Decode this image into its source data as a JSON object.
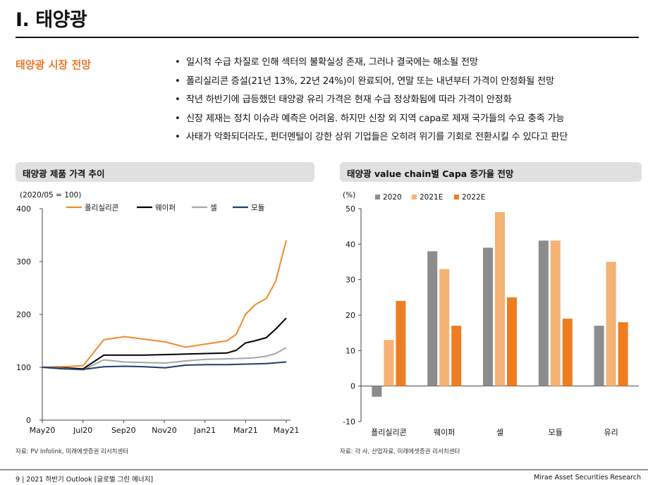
{
  "title": "I. 태양광",
  "section_label": "태양광 시장 전망",
  "bullets": [
    "일시적 수급 차질로 인해 섹터의 불확실성 존재, 그러나 결국에는 해소될 전망",
    "폴리실리콘 증설(21년 13%, 22년 24%)이 완료되어, 연말 또는 내년부터 가격이 안정화될 전망",
    "작년 하반기에 급등했던 태양광 유리 가격은 현재 수급 정상화됨에 따라 가격이 안정화",
    "신장 제재는 정치 이슈라 예측은 어려움. 하지만 신장 외 지역 capa로 제재 국가들의 수요 충족 가능",
    "사태가 악화되더라도, 펀더멘털이 강한 상위 기업들은 오히려 위기를 기회로 전환시킬 수 있다고 판단"
  ],
  "left_panel": {
    "title": "태양광 제품 가격 추이",
    "source": "자료: PV Infolink, 미래에셋증권 리서치센터"
  },
  "right_panel": {
    "title": "태양광 value chain별 Capa 증가율 전망",
    "source": "자료: 각 사, 산업자료, 미래에셋증권 리서치센터"
  },
  "footer": {
    "left": "9 | 2021 하반기 Outlook [글로벌 그린 에너지]",
    "right": "Mirae Asset Securities Research"
  },
  "chart_data": [
    {
      "type": "line",
      "title": "",
      "unit_label": "(2020/05 = 100)",
      "ylim": [
        0,
        400
      ],
      "yticks": [
        0,
        100,
        200,
        300,
        400
      ],
      "xlim": [
        "2020-05",
        "2021-05"
      ],
      "xticks": [
        "May20",
        "Jul20",
        "Sep20",
        "Nov20",
        "Jan21",
        "Mar21",
        "May21"
      ],
      "grid": false,
      "legend_placement": "top",
      "series": [
        {
          "name": "폴리실리콘",
          "color": "#F08A2B",
          "x": [
            "2020-05",
            "2020-06",
            "2020-07",
            "2020-08",
            "2020-09",
            "2020-10",
            "2020-11",
            "2020-12",
            "2021-01",
            "2021-02",
            "2021-02-15",
            "2021-03",
            "2021-03-15",
            "2021-04",
            "2021-04-15",
            "2021-05"
          ],
          "y": [
            100,
            101,
            103,
            152,
            158,
            153,
            148,
            138,
            144,
            150,
            162,
            200,
            218,
            230,
            262,
            340
          ]
        },
        {
          "name": "웨이퍼",
          "color": "#000000",
          "x": [
            "2020-05",
            "2020-06",
            "2020-07",
            "2020-08",
            "2020-09",
            "2020-10",
            "2020-11",
            "2020-12",
            "2021-01",
            "2021-02",
            "2021-02-15",
            "2021-03",
            "2021-03-15",
            "2021-04",
            "2021-04-15",
            "2021-05"
          ],
          "y": [
            100,
            99,
            97,
            123,
            123,
            123,
            124,
            125,
            126,
            127,
            132,
            146,
            150,
            156,
            172,
            193
          ]
        },
        {
          "name": "셀",
          "color": "#A6A6A6",
          "x": [
            "2020-05",
            "2020-06",
            "2020-07",
            "2020-08",
            "2020-09",
            "2020-10",
            "2020-11",
            "2020-12",
            "2021-01",
            "2021-02",
            "2021-03",
            "2021-03-15",
            "2021-04",
            "2021-04-15",
            "2021-05"
          ],
          "y": [
            100,
            98,
            95,
            114,
            110,
            109,
            108,
            112,
            115,
            116,
            117,
            118,
            121,
            126,
            137
          ]
        },
        {
          "name": "모듈",
          "color": "#1F3E6A",
          "x": [
            "2020-05",
            "2020-06",
            "2020-07",
            "2020-08",
            "2020-09",
            "2020-10",
            "2020-11",
            "2020-12",
            "2021-01",
            "2021-02",
            "2021-03",
            "2021-04",
            "2021-05"
          ],
          "y": [
            100,
            97,
            96,
            101,
            102,
            101,
            99,
            104,
            105,
            105,
            106,
            107,
            110
          ]
        }
      ]
    },
    {
      "type": "bar",
      "title": "",
      "unit_label": "(%)",
      "categories": [
        "폴리실리콘",
        "웨이퍼",
        "셀",
        "모듈",
        "유리"
      ],
      "ylim": [
        -10,
        50
      ],
      "yticks": [
        -10,
        0,
        10,
        20,
        30,
        40,
        50
      ],
      "grid": false,
      "legend_placement": "top",
      "series": [
        {
          "name": "2020",
          "color": "#8C8C8C",
          "values": [
            -3,
            38,
            39,
            41,
            17
          ]
        },
        {
          "name": "2021E",
          "color": "#F4B273",
          "values": [
            13,
            33,
            49,
            41,
            35
          ]
        },
        {
          "name": "2022E",
          "color": "#EE7D22",
          "values": [
            24,
            17,
            25,
            19,
            18
          ]
        }
      ]
    }
  ]
}
